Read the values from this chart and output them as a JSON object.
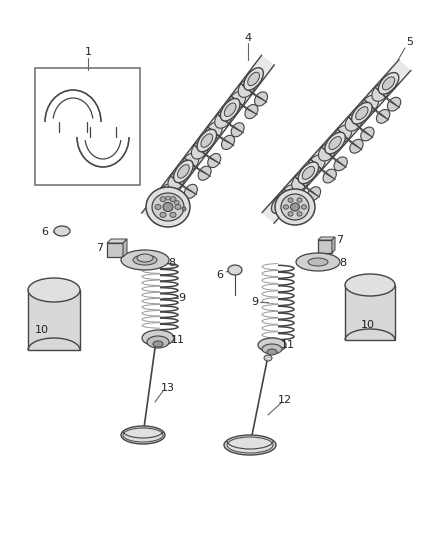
{
  "bg_color": "#ffffff",
  "lc": "#444444",
  "fig_w": 4.38,
  "fig_h": 5.33,
  "dpi": 100,
  "label_fs": 8,
  "label_color": "#222222"
}
